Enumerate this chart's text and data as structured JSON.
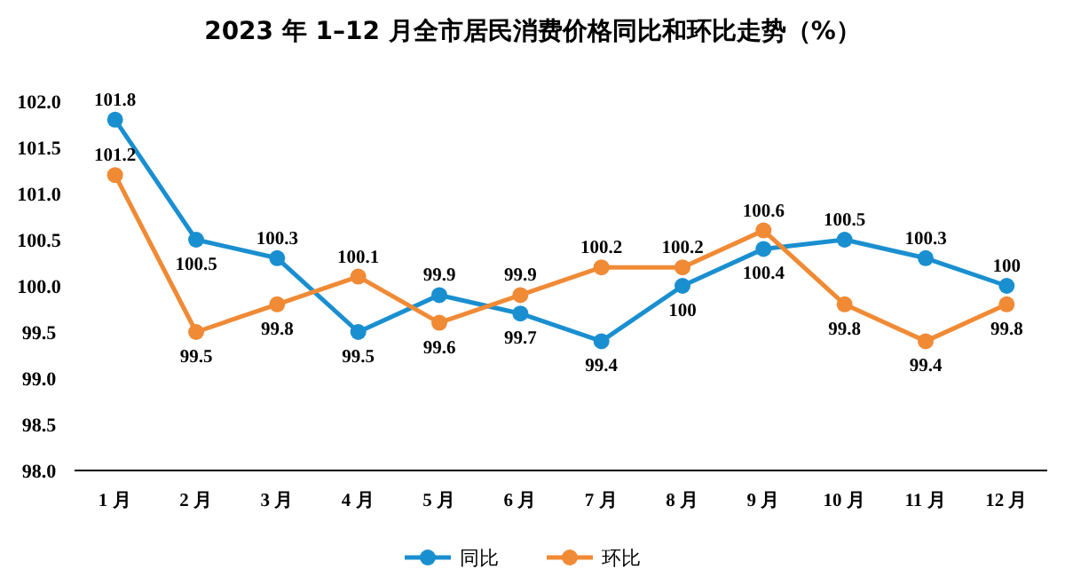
{
  "chart_data": {
    "type": "line",
    "title": "2023 年 1–12 月全市居民消费价格同比和环比走势（%）",
    "categories": [
      "1 月",
      "2 月",
      "3 月",
      "4 月",
      "5 月",
      "6 月",
      "7 月",
      "8 月",
      "9 月",
      "10 月",
      "11 月",
      "12 月"
    ],
    "series": [
      {
        "name": "同比",
        "color": "#1a8fd0",
        "values": [
          101.8,
          100.5,
          100.3,
          99.5,
          99.9,
          99.7,
          99.4,
          100,
          100.4,
          100.5,
          100.3,
          100
        ]
      },
      {
        "name": "环比",
        "color": "#f08a35",
        "values": [
          101.2,
          99.5,
          99.8,
          100.1,
          99.6,
          99.9,
          100.2,
          100.2,
          100.6,
          99.8,
          99.4,
          99.8
        ]
      }
    ],
    "ylim": [
      98,
      102
    ],
    "yticks": [
      {
        "value": 98,
        "label": "98.0"
      },
      {
        "value": 98.5,
        "label": "98.5"
      },
      {
        "value": 99,
        "label": "99.0"
      },
      {
        "value": 99.5,
        "label": "99.5"
      },
      {
        "value": 100,
        "label": "100.0"
      },
      {
        "value": 100.5,
        "label": "100.5"
      },
      {
        "value": 101,
        "label": "101.0"
      },
      {
        "value": 101.5,
        "label": "101.5"
      },
      {
        "value": 102,
        "label": "102.0"
      }
    ],
    "marker": "circle",
    "line_style": "solid",
    "data_labels": true,
    "legend": "bottom",
    "grid": false
  }
}
